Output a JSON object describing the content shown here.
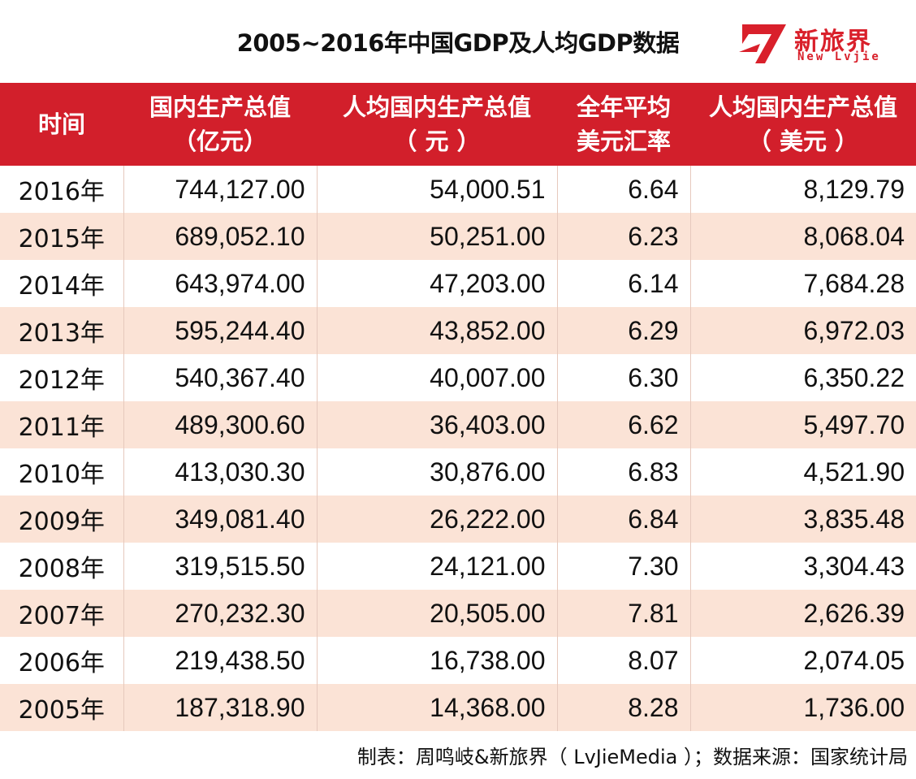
{
  "title": "2005~2016年中国GDP及人均GDP数据",
  "logo": {
    "text": "新旅界",
    "sub": "New Lvjie",
    "color": "#d9202b"
  },
  "table": {
    "headers": [
      {
        "l1": "时间",
        "l2": ""
      },
      {
        "l1": "国内生产总值",
        "l2": "（亿元）"
      },
      {
        "l1": "人均国内生产总值",
        "l2": "（ 元 ）"
      },
      {
        "l1": "全年平均",
        "l2": "美元汇率"
      },
      {
        "l1": "人均国内生产总值",
        "l2": "（ 美元 ）"
      }
    ],
    "rows": [
      [
        "2016年",
        "744,127.00",
        "54,000.51",
        "6.64",
        "8,129.79"
      ],
      [
        "2015年",
        "689,052.10",
        "50,251.00",
        "6.23",
        "8,068.04"
      ],
      [
        "2014年",
        "643,974.00",
        "47,203.00",
        "6.14",
        "7,684.28"
      ],
      [
        "2013年",
        "595,244.40",
        "43,852.00",
        "6.29",
        "6,972.03"
      ],
      [
        "2012年",
        "540,367.40",
        "40,007.00",
        "6.30",
        "6,350.22"
      ],
      [
        "2011年",
        "489,300.60",
        "36,403.00",
        "6.62",
        "5,497.70"
      ],
      [
        "2010年",
        "413,030.30",
        "30,876.00",
        "6.83",
        "4,521.90"
      ],
      [
        "2009年",
        "349,081.40",
        "26,222.00",
        "6.84",
        "3,835.48"
      ],
      [
        "2008年",
        "319,515.50",
        "24,121.00",
        "7.30",
        "3,304.43"
      ],
      [
        "2007年",
        "270,232.30",
        "20,505.00",
        "7.81",
        "2,626.39"
      ],
      [
        "2006年",
        "219,438.50",
        "16,738.00",
        "8.07",
        "2,074.05"
      ],
      [
        "2005年",
        "187,318.90",
        "14,368.00",
        "8.28",
        "1,736.00"
      ]
    ]
  },
  "footer": "制表：周鸣岐&新旅界（ LvJieMedia ）；数据来源：国家统计局",
  "colors": {
    "header_bg": "#d21f2b",
    "stripe": "#fbe3d6"
  }
}
